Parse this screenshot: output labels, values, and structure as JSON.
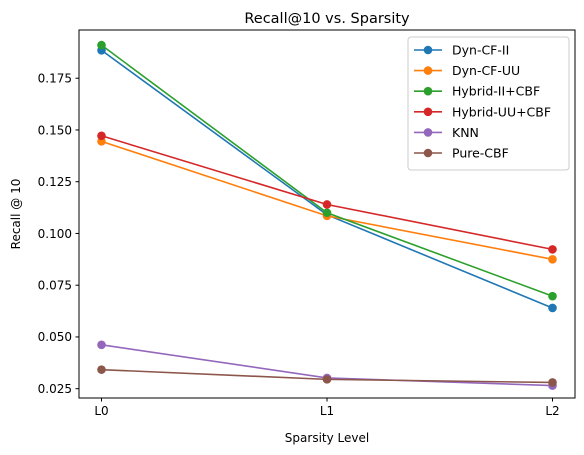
{
  "chart_data": {
    "type": "line",
    "title": "Recall@10 vs. Sparsity",
    "xlabel": "Sparsity Level",
    "ylabel": "Recall @ 10",
    "categories": [
      "L0",
      "L1",
      "L2"
    ],
    "ylim": [
      0.0205,
      0.1983
    ],
    "yticks": [
      "0.025",
      "0.050",
      "0.075",
      "0.100",
      "0.125",
      "0.150",
      "0.175"
    ],
    "ytick_values": [
      0.025,
      0.05,
      0.075,
      0.1,
      0.125,
      0.15,
      0.175
    ],
    "grid": false,
    "legend_position": "top-right",
    "series": [
      {
        "name": "Dyn-CF-II",
        "color": "#1f77b4",
        "values": [
          0.1885,
          0.109,
          0.064
        ]
      },
      {
        "name": "Dyn-CF-UU",
        "color": "#ff7f0e",
        "values": [
          0.1445,
          0.1085,
          0.0875
        ]
      },
      {
        "name": "Hybrid-II+CBF",
        "color": "#2ca02c",
        "values": [
          0.191,
          0.11,
          0.0697
        ]
      },
      {
        "name": "Hybrid-UU+CBF",
        "color": "#d62728",
        "values": [
          0.1472,
          0.114,
          0.0923
        ]
      },
      {
        "name": "KNN",
        "color": "#9467bd",
        "values": [
          0.0462,
          0.0302,
          0.0265
        ]
      },
      {
        "name": "Pure-CBF",
        "color": "#8c564b",
        "values": [
          0.0342,
          0.0295,
          0.028
        ]
      }
    ]
  }
}
